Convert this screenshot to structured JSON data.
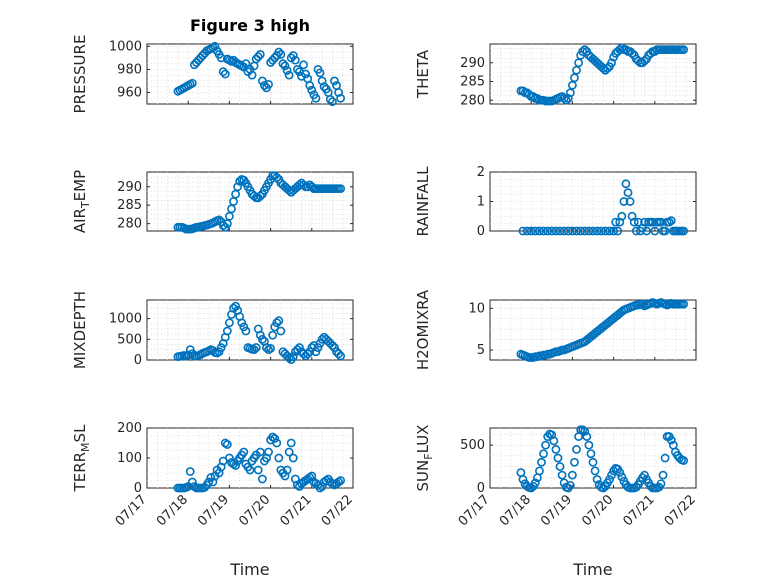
{
  "figure": {
    "title": "Figure 3 high",
    "marker_color": "#0072BD",
    "axis_color": "#262626",
    "grid_color": "#d9d9d9"
  },
  "chart_data": [
    {
      "type": "scatter",
      "title": "Figure 3 high",
      "ylabel": "PRESSURE",
      "xlabel": "",
      "xlim": [
        "07/17",
        "07/22"
      ],
      "ylim": [
        950,
        1002
      ],
      "yticks": [
        960,
        980,
        1000
      ],
      "xticks": [],
      "grid": true,
      "x": [
        0.75,
        0.8,
        0.85,
        0.9,
        0.95,
        1.0,
        1.05,
        1.1,
        1.15,
        1.2,
        1.25,
        1.3,
        1.35,
        1.4,
        1.45,
        1.5,
        1.55,
        1.6,
        1.65,
        1.7,
        1.75,
        1.8,
        1.85,
        1.9,
        1.95,
        2.0,
        2.05,
        2.1,
        2.15,
        2.2,
        2.25,
        2.3,
        2.35,
        2.4,
        2.45,
        2.5,
        2.55,
        2.6,
        2.65,
        2.7,
        2.75,
        2.8,
        2.85,
        2.9,
        2.95,
        3.0,
        3.05,
        3.1,
        3.15,
        3.2,
        3.25,
        3.3,
        3.35,
        3.4,
        3.45,
        3.5,
        3.55,
        3.6,
        3.65,
        3.7,
        3.75,
        3.8,
        3.85,
        3.9,
        3.95,
        4.0,
        4.05,
        4.1,
        4.15,
        4.2,
        4.25,
        4.3,
        4.35,
        4.4,
        4.45,
        4.5,
        4.55,
        4.6,
        4.65,
        4.7
      ],
      "y": [
        961,
        962,
        963,
        964,
        965,
        966,
        967,
        968,
        984,
        986,
        988,
        990,
        992,
        994,
        996,
        997,
        998,
        999,
        1000,
        996,
        993,
        990,
        978,
        976,
        989,
        988,
        987,
        988,
        986,
        985,
        984,
        983,
        982,
        985,
        978,
        980,
        975,
        983,
        989,
        991,
        993,
        970,
        966,
        964,
        967,
        986,
        988,
        990,
        992,
        995,
        993,
        985,
        983,
        979,
        975,
        990,
        992,
        988,
        980,
        978,
        974,
        984,
        976,
        972,
        966,
        962,
        958,
        955,
        980,
        977,
        970,
        965,
        963,
        960,
        954,
        952,
        970,
        966,
        960,
        955
      ]
    },
    {
      "type": "scatter",
      "ylabel": "THETA",
      "xlabel": "",
      "xlim": [
        "07/17",
        "07/22"
      ],
      "ylim": [
        279,
        295
      ],
      "yticks": [
        280,
        285,
        290
      ],
      "xticks": [],
      "grid": true,
      "x": [
        0.75,
        0.8,
        0.85,
        0.9,
        0.95,
        1.0,
        1.05,
        1.1,
        1.15,
        1.2,
        1.25,
        1.3,
        1.35,
        1.4,
        1.45,
        1.5,
        1.55,
        1.6,
        1.65,
        1.7,
        1.75,
        1.8,
        1.85,
        1.9,
        1.95,
        2.0,
        2.05,
        2.1,
        2.15,
        2.2,
        2.25,
        2.3,
        2.35,
        2.4,
        2.45,
        2.5,
        2.55,
        2.6,
        2.65,
        2.7,
        2.75,
        2.8,
        2.85,
        2.9,
        2.95,
        3.0,
        3.05,
        3.1,
        3.15,
        3.2,
        3.25,
        3.3,
        3.35,
        3.4,
        3.45,
        3.5,
        3.55,
        3.6,
        3.65,
        3.7,
        3.75,
        3.8,
        3.85,
        3.9,
        3.95,
        4.0,
        4.05,
        4.1,
        4.15,
        4.2,
        4.25,
        4.3,
        4.35,
        4.4,
        4.45,
        4.5,
        4.55,
        4.6,
        4.65,
        4.7
      ],
      "y": [
        282.5,
        282.5,
        282,
        282,
        281.5,
        281,
        281,
        280.5,
        280.5,
        280,
        280,
        280,
        279.8,
        279.8,
        279.8,
        279.8,
        280,
        280.3,
        280.5,
        280.8,
        281,
        280.5,
        280,
        280.5,
        282,
        284,
        286,
        288,
        290,
        292,
        293,
        293.5,
        293,
        292,
        291.5,
        291,
        290.5,
        290,
        289.5,
        289,
        288.5,
        288,
        288.5,
        289,
        290,
        291.5,
        292.5,
        293,
        293.5,
        294,
        293.5,
        293.5,
        293,
        293,
        292.5,
        292,
        291,
        290.5,
        290,
        290,
        290.5,
        291,
        292,
        292.5,
        293,
        293,
        293.5,
        293.5,
        293.5,
        293.5,
        293.5,
        293.5,
        293.5,
        293.5,
        293.5,
        293.5,
        293.5,
        293.5,
        293.5,
        293.5
      ]
    },
    {
      "type": "scatter",
      "ylabel": "AIR_TEMP",
      "xlabel": "",
      "xlim": [
        "07/17",
        "07/22"
      ],
      "ylim": [
        278,
        294
      ],
      "yticks": [
        280,
        285,
        290
      ],
      "xticks": [],
      "grid": true,
      "x": [
        0.75,
        0.8,
        0.85,
        0.9,
        0.95,
        1.0,
        1.05,
        1.1,
        1.15,
        1.2,
        1.25,
        1.3,
        1.35,
        1.4,
        1.45,
        1.5,
        1.55,
        1.6,
        1.65,
        1.7,
        1.75,
        1.8,
        1.85,
        1.9,
        1.95,
        2.0,
        2.05,
        2.1,
        2.15,
        2.2,
        2.25,
        2.3,
        2.35,
        2.4,
        2.45,
        2.5,
        2.55,
        2.6,
        2.65,
        2.7,
        2.75,
        2.8,
        2.85,
        2.9,
        2.95,
        3.0,
        3.05,
        3.1,
        3.15,
        3.2,
        3.25,
        3.3,
        3.35,
        3.4,
        3.45,
        3.5,
        3.55,
        3.6,
        3.65,
        3.7,
        3.75,
        3.8,
        3.85,
        3.9,
        3.95,
        4.0,
        4.05,
        4.1,
        4.15,
        4.2,
        4.25,
        4.3,
        4.35,
        4.4,
        4.45,
        4.5,
        4.55,
        4.6,
        4.65,
        4.7
      ],
      "y": [
        279,
        279,
        279,
        278.8,
        278.5,
        278.5,
        278.5,
        278.6,
        278.8,
        279,
        279,
        279.2,
        279.3,
        279.5,
        279.6,
        279.8,
        280,
        280.2,
        280.5,
        280.8,
        281,
        280.5,
        279.5,
        279,
        280,
        282,
        284,
        286,
        288,
        290,
        291.5,
        292,
        291.8,
        291,
        290,
        289,
        288,
        287.5,
        287,
        287,
        287.5,
        288,
        289,
        290,
        291,
        292,
        293,
        293,
        292.5,
        292,
        291,
        290.5,
        290,
        289.5,
        289,
        288.5,
        289,
        289.5,
        290,
        290.5,
        291,
        290.5,
        290,
        290,
        290.5,
        290,
        289.5,
        289.5,
        289.5,
        289.5,
        289.5,
        289.5,
        289.5,
        289.5,
        289.5,
        289.5,
        289.5,
        289.5,
        289.5,
        289.5
      ]
    },
    {
      "type": "scatter",
      "ylabel": "RAINFALL",
      "xlabel": "",
      "xlim": [
        "07/17",
        "07/22"
      ],
      "ylim": [
        0,
        2
      ],
      "yticks": [
        0,
        1,
        2
      ],
      "xticks": [],
      "grid": true,
      "x": [
        0.8,
        0.9,
        1.0,
        1.1,
        1.2,
        1.3,
        1.4,
        1.5,
        1.6,
        1.7,
        1.8,
        1.9,
        2.0,
        2.1,
        2.2,
        2.3,
        2.4,
        2.5,
        2.6,
        2.7,
        2.8,
        2.9,
        3.0,
        3.05,
        3.1,
        3.15,
        3.2,
        3.25,
        3.3,
        3.35,
        3.4,
        3.45,
        3.5,
        3.55,
        3.6,
        3.65,
        3.7,
        3.75,
        3.8,
        3.85,
        3.9,
        3.95,
        4.0,
        4.05,
        4.1,
        4.15,
        4.2,
        4.25,
        4.3,
        4.35,
        4.4,
        4.45,
        4.5,
        4.55,
        4.6,
        4.65,
        4.7
      ],
      "y": [
        0,
        0,
        0,
        0,
        0,
        0,
        0,
        0,
        0,
        0,
        0,
        0,
        0,
        0,
        0,
        0,
        0,
        0,
        0,
        0,
        0,
        0,
        0,
        0.3,
        0,
        0.3,
        0.5,
        1.0,
        1.6,
        1.3,
        1.0,
        0.5,
        0.3,
        0,
        0.3,
        0,
        0.1,
        0.3,
        0,
        0.3,
        0.3,
        0.3,
        0,
        0.3,
        0.3,
        0.3,
        0,
        0,
        0.3,
        0.3,
        0.35,
        0,
        0,
        0,
        0,
        0,
        0
      ]
    },
    {
      "type": "scatter",
      "ylabel": "MIXDEPTH",
      "xlabel": "",
      "xlim": [
        "07/17",
        "07/22"
      ],
      "ylim": [
        0,
        1450
      ],
      "yticks": [
        0,
        500,
        1000
      ],
      "xticks": [],
      "grid": true,
      "x": [
        0.75,
        0.8,
        0.85,
        0.9,
        0.95,
        1.0,
        1.05,
        1.1,
        1.15,
        1.2,
        1.25,
        1.3,
        1.35,
        1.4,
        1.45,
        1.5,
        1.55,
        1.6,
        1.65,
        1.7,
        1.75,
        1.8,
        1.85,
        1.9,
        1.95,
        2.0,
        2.05,
        2.1,
        2.15,
        2.2,
        2.25,
        2.3,
        2.35,
        2.4,
        2.45,
        2.5,
        2.55,
        2.6,
        2.65,
        2.7,
        2.75,
        2.8,
        2.85,
        2.9,
        2.95,
        3.0,
        3.05,
        3.1,
        3.15,
        3.2,
        3.25,
        3.3,
        3.35,
        3.4,
        3.45,
        3.5,
        3.55,
        3.6,
        3.65,
        3.7,
        3.75,
        3.8,
        3.85,
        3.9,
        3.95,
        4.0,
        4.05,
        4.1,
        4.15,
        4.2,
        4.25,
        4.3,
        4.35,
        4.4,
        4.45,
        4.5,
        4.55,
        4.6,
        4.65,
        4.7
      ],
      "y": [
        80,
        90,
        100,
        110,
        90,
        120,
        250,
        150,
        100,
        90,
        110,
        130,
        160,
        180,
        200,
        220,
        250,
        230,
        180,
        170,
        200,
        300,
        400,
        550,
        700,
        900,
        1100,
        1250,
        1300,
        1200,
        1050,
        900,
        800,
        700,
        300,
        280,
        260,
        250,
        300,
        750,
        600,
        500,
        450,
        300,
        250,
        280,
        600,
        800,
        900,
        950,
        700,
        200,
        150,
        100,
        50,
        10,
        80,
        200,
        250,
        300,
        200,
        150,
        100,
        150,
        200,
        300,
        350,
        200,
        300,
        400,
        500,
        550,
        500,
        450,
        400,
        350,
        300,
        200,
        150,
        100
      ]
    },
    {
      "type": "scatter",
      "ylabel": "H2OMIXRA",
      "xlabel": "",
      "xlim": [
        "07/17",
        "07/22"
      ],
      "ylim": [
        3.8,
        11
      ],
      "yticks": [
        5,
        10
      ],
      "xticks": [],
      "grid": true,
      "x": [
        0.75,
        0.8,
        0.85,
        0.9,
        0.95,
        1.0,
        1.05,
        1.1,
        1.15,
        1.2,
        1.25,
        1.3,
        1.35,
        1.4,
        1.45,
        1.5,
        1.55,
        1.6,
        1.65,
        1.7,
        1.75,
        1.8,
        1.85,
        1.9,
        1.95,
        2.0,
        2.05,
        2.1,
        2.15,
        2.2,
        2.25,
        2.3,
        2.35,
        2.4,
        2.45,
        2.5,
        2.55,
        2.6,
        2.65,
        2.7,
        2.75,
        2.8,
        2.85,
        2.9,
        2.95,
        3.0,
        3.05,
        3.1,
        3.15,
        3.2,
        3.25,
        3.3,
        3.35,
        3.4,
        3.45,
        3.5,
        3.55,
        3.6,
        3.65,
        3.7,
        3.75,
        3.8,
        3.85,
        3.9,
        3.95,
        4.0,
        4.05,
        4.1,
        4.15,
        4.2,
        4.25,
        4.3,
        4.35,
        4.4,
        4.45,
        4.5,
        4.55,
        4.6,
        4.65,
        4.7
      ],
      "y": [
        4.5,
        4.4,
        4.3,
        4.2,
        4.1,
        4.1,
        4.1,
        4.2,
        4.2,
        4.3,
        4.3,
        4.4,
        4.4,
        4.5,
        4.5,
        4.6,
        4.7,
        4.8,
        4.8,
        4.9,
        5.0,
        5.0,
        5.1,
        5.2,
        5.3,
        5.4,
        5.5,
        5.6,
        5.7,
        5.8,
        5.9,
        6.0,
        6.2,
        6.4,
        6.6,
        6.8,
        7.0,
        7.2,
        7.4,
        7.6,
        7.8,
        8.0,
        8.2,
        8.4,
        8.6,
        8.8,
        9.0,
        9.2,
        9.4,
        9.6,
        9.8,
        9.9,
        10.0,
        10.1,
        10.2,
        10.3,
        10.4,
        10.4,
        10.5,
        10.5,
        10.3,
        10.4,
        10.5,
        10.6,
        10.7,
        10.6,
        10.5,
        10.6,
        10.7,
        10.6,
        10.5,
        10.4,
        10.5,
        10.6,
        10.5,
        10.5,
        10.5,
        10.5,
        10.5,
        10.5
      ]
    },
    {
      "type": "scatter",
      "ylabel": "TERR_MSL",
      "xlabel": "Time",
      "xlim": [
        "07/17",
        "07/22"
      ],
      "ylim": [
        0,
        200
      ],
      "yticks": [
        0,
        100,
        200
      ],
      "xticks": [
        "07/17",
        "07/18",
        "07/19",
        "07/20",
        "07/21",
        "07/22"
      ],
      "grid": true,
      "x": [
        0.75,
        0.8,
        0.85,
        0.9,
        0.95,
        1.0,
        1.05,
        1.1,
        1.15,
        1.2,
        1.25,
        1.3,
        1.35,
        1.4,
        1.45,
        1.5,
        1.55,
        1.6,
        1.65,
        1.7,
        1.75,
        1.8,
        1.85,
        1.9,
        1.95,
        2.0,
        2.05,
        2.1,
        2.15,
        2.2,
        2.25,
        2.3,
        2.35,
        2.4,
        2.45,
        2.5,
        2.55,
        2.6,
        2.65,
        2.7,
        2.75,
        2.8,
        2.85,
        2.9,
        2.95,
        3.0,
        3.05,
        3.1,
        3.15,
        3.2,
        3.25,
        3.3,
        3.35,
        3.4,
        3.45,
        3.5,
        3.55,
        3.6,
        3.65,
        3.7,
        3.75,
        3.8,
        3.85,
        3.9,
        3.95,
        4.0,
        4.05,
        4.1,
        4.15,
        4.2,
        4.25,
        4.3,
        4.35,
        4.4,
        4.45,
        4.5,
        4.55,
        4.6,
        4.65,
        4.7
      ],
      "y": [
        0,
        0,
        0,
        0,
        2,
        5,
        55,
        20,
        5,
        0,
        0,
        0,
        0,
        2,
        10,
        20,
        35,
        20,
        40,
        60,
        50,
        70,
        90,
        150,
        145,
        100,
        85,
        80,
        75,
        90,
        100,
        110,
        120,
        80,
        70,
        60,
        90,
        100,
        110,
        60,
        120,
        30,
        90,
        100,
        120,
        160,
        170,
        165,
        150,
        100,
        60,
        50,
        40,
        60,
        120,
        150,
        100,
        30,
        10,
        5,
        15,
        20,
        25,
        30,
        35,
        40,
        20,
        15,
        10,
        0,
        5,
        20,
        25,
        30,
        20,
        15,
        10,
        15,
        20,
        25
      ]
    },
    {
      "type": "scatter",
      "ylabel": "SUN_FLUX",
      "xlabel": "Time",
      "xlim": [
        "07/17",
        "07/22"
      ],
      "ylim": [
        0,
        700
      ],
      "yticks": [
        0,
        500
      ],
      "xticks": [
        "07/17",
        "07/18",
        "07/19",
        "07/20",
        "07/21",
        "07/22"
      ],
      "grid": true,
      "x": [
        0.75,
        0.8,
        0.85,
        0.9,
        0.95,
        1.0,
        1.05,
        1.1,
        1.15,
        1.2,
        1.25,
        1.3,
        1.35,
        1.4,
        1.45,
        1.5,
        1.55,
        1.6,
        1.65,
        1.7,
        1.75,
        1.8,
        1.85,
        1.9,
        1.95,
        2.0,
        2.05,
        2.1,
        2.15,
        2.2,
        2.25,
        2.3,
        2.35,
        2.4,
        2.45,
        2.5,
        2.55,
        2.6,
        2.65,
        2.7,
        2.75,
        2.8,
        2.85,
        2.9,
        2.95,
        3.0,
        3.05,
        3.1,
        3.15,
        3.2,
        3.25,
        3.3,
        3.35,
        3.4,
        3.45,
        3.5,
        3.55,
        3.6,
        3.65,
        3.7,
        3.75,
        3.8,
        3.85,
        3.9,
        3.95,
        4.0,
        4.05,
        4.1,
        4.15,
        4.2,
        4.25,
        4.3,
        4.35,
        4.4,
        4.45,
        4.5,
        4.55,
        4.6,
        4.65,
        4.7
      ],
      "y": [
        180,
        100,
        50,
        20,
        5,
        0,
        20,
        60,
        120,
        200,
        300,
        400,
        500,
        600,
        630,
        620,
        550,
        450,
        350,
        250,
        150,
        60,
        10,
        0,
        30,
        150,
        300,
        450,
        600,
        680,
        680,
        660,
        600,
        500,
        400,
        300,
        200,
        100,
        40,
        10,
        0,
        20,
        60,
        100,
        150,
        200,
        230,
        220,
        180,
        130,
        80,
        40,
        10,
        0,
        0,
        0,
        10,
        40,
        80,
        120,
        150,
        100,
        60,
        20,
        0,
        0,
        0,
        10,
        50,
        150,
        350,
        600,
        600,
        560,
        500,
        420,
        380,
        350,
        330,
        320
      ]
    }
  ]
}
